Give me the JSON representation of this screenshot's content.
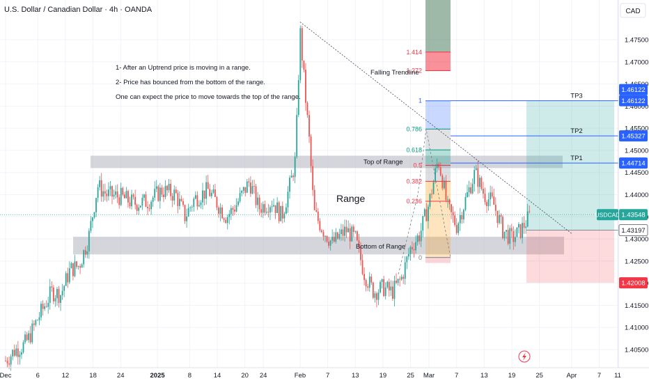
{
  "header": {
    "title": "U.S. Dollar / Canadian Dollar · 4h · OANDA",
    "currency": "CAD"
  },
  "colors": {
    "bull": "#26a69a",
    "bear": "#ef5350",
    "band": "#b2b5be",
    "blue_line": "#2962ff",
    "tp_zone": "#26a69a",
    "sl_zone": "#f23645"
  },
  "chart_data": {
    "type": "candlestick",
    "symbol": "USDCAD",
    "timeframe": "4h",
    "ylim": [
      1.4,
      1.488
    ],
    "y_ticks": [
      "1.47500",
      "1.47000",
      "1.46500",
      "1.46000",
      "1.45500",
      "1.45000",
      "1.44500",
      "1.44000",
      "1.43500",
      "1.43000",
      "1.42500",
      "1.42000",
      "1.41500",
      "1.41000",
      "1.40500"
    ],
    "x_ticks": [
      "Dec",
      "6",
      "12",
      "18",
      "24",
      "2025",
      "8",
      "14",
      "20",
      "24",
      "Feb",
      "7",
      "13",
      "19",
      "25",
      "Mar",
      "7",
      "13",
      "19",
      "25",
      "Apr",
      "7",
      "11"
    ],
    "x_tick_dates": [
      "2024-11-29",
      "2024-12-06",
      "2024-12-12",
      "2024-12-18",
      "2024-12-24",
      "2025-01-01",
      "2025-01-08",
      "2025-01-14",
      "2025-01-20",
      "2025-01-24",
      "2025-02-01",
      "2025-02-07",
      "2025-02-13",
      "2025-02-19",
      "2025-02-25",
      "2025-03-01",
      "2025-03-07",
      "2025-03-13",
      "2025-03-19",
      "2025-03-25",
      "2025-04-01",
      "2025-04-07",
      "2025-04-11"
    ],
    "price_path": [
      [
        "2024-11-29",
        1.4025
      ],
      [
        "2024-12-01",
        1.4048
      ],
      [
        "2024-12-03",
        1.406
      ],
      [
        "2024-12-04",
        1.4075
      ],
      [
        "2024-12-06",
        1.412
      ],
      [
        "2024-12-09",
        1.418
      ],
      [
        "2024-12-11",
        1.4175
      ],
      [
        "2024-12-13",
        1.423
      ],
      [
        "2024-12-15",
        1.424
      ],
      [
        "2024-12-17",
        1.43
      ],
      [
        "2024-12-19",
        1.442
      ],
      [
        "2024-12-21",
        1.44
      ],
      [
        "2024-12-24",
        1.4395
      ],
      [
        "2024-12-27",
        1.438
      ],
      [
        "2024-12-30",
        1.4385
      ],
      [
        "2025-01-02",
        1.441
      ],
      [
        "2025-01-05",
        1.44
      ],
      [
        "2025-01-07",
        1.435
      ],
      [
        "2025-01-09",
        1.439
      ],
      [
        "2025-01-12",
        1.441
      ],
      [
        "2025-01-14",
        1.438
      ],
      [
        "2025-01-16",
        1.435
      ],
      [
        "2025-01-18",
        1.4375
      ],
      [
        "2025-01-21",
        1.443
      ],
      [
        "2025-01-23",
        1.437
      ],
      [
        "2025-01-26",
        1.4385
      ],
      [
        "2025-01-28",
        1.435
      ],
      [
        "2025-01-30",
        1.443
      ],
      [
        "2025-01-31",
        1.448
      ],
      [
        "2025-02-01",
        1.477
      ],
      [
        "2025-02-02",
        1.464
      ],
      [
        "2025-02-03",
        1.452
      ],
      [
        "2025-02-04",
        1.436
      ],
      [
        "2025-02-06",
        1.432
      ],
      [
        "2025-02-08",
        1.429
      ],
      [
        "2025-02-11",
        1.432
      ],
      [
        "2025-02-13",
        1.43
      ],
      [
        "2025-02-15",
        1.422
      ],
      [
        "2025-02-17",
        1.418
      ],
      [
        "2025-02-19",
        1.419
      ],
      [
        "2025-02-21",
        1.418
      ],
      [
        "2025-02-23",
        1.421
      ],
      [
        "2025-02-25",
        1.428
      ],
      [
        "2025-02-27",
        1.431
      ],
      [
        "2025-03-01",
        1.438
      ],
      [
        "2025-03-03",
        1.448
      ],
      [
        "2025-03-04",
        1.443
      ],
      [
        "2025-03-05",
        1.437
      ],
      [
        "2025-03-07",
        1.433
      ],
      [
        "2025-03-09",
        1.439
      ],
      [
        "2025-03-11",
        1.445
      ],
      [
        "2025-03-13",
        1.44
      ],
      [
        "2025-03-15",
        1.438
      ],
      [
        "2025-03-17",
        1.432
      ],
      [
        "2025-03-19",
        1.43
      ],
      [
        "2025-03-21",
        1.432
      ],
      [
        "2025-03-23",
        1.4354
      ]
    ],
    "range_top": {
      "from": 1.446,
      "to": 1.4488,
      "label": "Top of Range"
    },
    "range_bottom": {
      "from": 1.4265,
      "to": 1.4305,
      "label": "Bottom of Range"
    },
    "range_label": "Range",
    "trendline": {
      "label": "Falling Trendline",
      "from": [
        "2025-02-01",
        1.479
      ],
      "to": [
        "2025-04-01",
        1.4312
      ]
    },
    "fib": [
      {
        "level": "1.414",
        "price": 1.4722,
        "color": "#f23645"
      },
      {
        "level": "1.272",
        "price": 1.468,
        "color": "#f23645"
      },
      {
        "level": "1",
        "price": 1.4612,
        "color": "#2962ff"
      },
      {
        "level": "0.786",
        "price": 1.4548,
        "color": "#089981"
      },
      {
        "level": "0.618",
        "price": 1.4501,
        "color": "#089981"
      },
      {
        "level": "0.5",
        "price": 1.4466,
        "color": "#f23645"
      },
      {
        "level": "0.382",
        "price": 1.443,
        "color": "#f23645"
      },
      {
        "level": "0.236",
        "price": 1.4385,
        "color": "#f23645"
      },
      {
        "level": "0",
        "price": 1.4258,
        "color": "#787b86"
      }
    ],
    "targets": [
      {
        "label": "TP3",
        "price": 1.46122,
        "value": "1.46122"
      },
      {
        "label": "TP2",
        "price": 1.45327,
        "value": "1.45327"
      },
      {
        "label": "TP1",
        "price": 1.44714,
        "value": "1.44714"
      }
    ],
    "current": {
      "symbol": "USDCAD",
      "value": "1.43548",
      "price": 1.43548
    },
    "entry": {
      "value": "1.43197",
      "price": 1.43197
    },
    "stop": {
      "value": "1.42008",
      "price": 1.42008
    },
    "annotations": [
      "1- After an Uptrend price is moving in a range.",
      "2- Price has bounced from the bottom of the range.",
      "One can expect the price to move towards the top of the range."
    ]
  }
}
